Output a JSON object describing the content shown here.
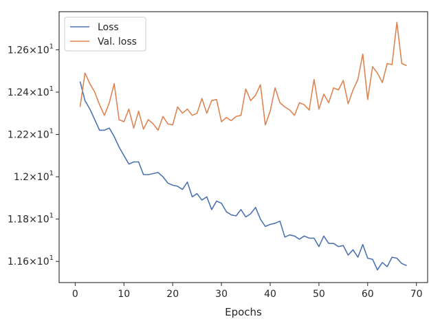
{
  "chart_data": {
    "type": "line",
    "title": "",
    "xlabel": "Epochs",
    "ylabel": "",
    "xlim": [
      -3.3,
      72.3
    ],
    "ylim": [
      11.5,
      12.78
    ],
    "grid": false,
    "legend_position": "top-left",
    "x_ticks": [
      0,
      10,
      20,
      30,
      40,
      50,
      60,
      70
    ],
    "x_tick_labels": [
      "0",
      "10",
      "20",
      "30",
      "40",
      "50",
      "60",
      "70"
    ],
    "y_ticks": [
      11.6,
      11.8,
      12.0,
      12.2,
      12.4,
      12.6
    ],
    "y_tick_labels": [
      {
        "base": "1.16",
        "exp": "1"
      },
      {
        "base": "1.18",
        "exp": "1"
      },
      {
        "base": "1.2",
        "exp": "1"
      },
      {
        "base": "1.22",
        "exp": "1"
      },
      {
        "base": "1.24",
        "exp": "1"
      },
      {
        "base": "1.26",
        "exp": "1"
      }
    ],
    "x": [
      1,
      2,
      3,
      4,
      5,
      6,
      7,
      8,
      9,
      10,
      11,
      12,
      13,
      14,
      15,
      16,
      17,
      18,
      19,
      20,
      21,
      22,
      23,
      24,
      25,
      26,
      27,
      28,
      29,
      30,
      31,
      32,
      33,
      34,
      35,
      36,
      37,
      38,
      39,
      40,
      41,
      42,
      43,
      44,
      45,
      46,
      47,
      48,
      49,
      50,
      51,
      52,
      53,
      54,
      55,
      56,
      57,
      58,
      59,
      60,
      61,
      62,
      63,
      64,
      65,
      66,
      67,
      68
    ],
    "series": [
      {
        "name": "Loss",
        "color": "#4c72b0",
        "values": [
          12.45,
          12.36,
          12.32,
          12.27,
          12.22,
          12.22,
          12.23,
          12.19,
          12.14,
          12.1,
          12.06,
          12.07,
          12.07,
          12.01,
          12.01,
          12.015,
          12.02,
          12.0,
          11.97,
          11.96,
          11.955,
          11.94,
          11.975,
          11.905,
          11.92,
          11.89,
          11.905,
          11.845,
          11.885,
          11.875,
          11.835,
          11.82,
          11.815,
          11.845,
          11.81,
          11.825,
          11.855,
          11.8,
          11.765,
          11.775,
          11.78,
          11.79,
          11.715,
          11.725,
          11.72,
          11.705,
          11.72,
          11.71,
          11.71,
          11.67,
          11.72,
          11.685,
          11.685,
          11.67,
          11.675,
          11.63,
          11.655,
          11.62,
          11.68,
          11.615,
          11.61,
          11.56,
          11.595,
          11.575,
          11.62,
          11.615,
          11.59,
          11.58
        ]
      },
      {
        "name": "Val. loss",
        "color": "#dd8452",
        "values": [
          12.33,
          12.49,
          12.44,
          12.4,
          12.34,
          12.29,
          12.35,
          12.44,
          12.27,
          12.26,
          12.32,
          12.23,
          12.31,
          12.225,
          12.27,
          12.25,
          12.22,
          12.285,
          12.25,
          12.245,
          12.33,
          12.3,
          12.32,
          12.29,
          12.3,
          12.37,
          12.3,
          12.36,
          12.365,
          12.26,
          12.28,
          12.265,
          12.285,
          12.29,
          12.415,
          12.36,
          12.385,
          12.435,
          12.245,
          12.31,
          12.42,
          12.35,
          12.33,
          12.315,
          12.29,
          12.35,
          12.34,
          12.315,
          12.46,
          12.32,
          12.39,
          12.35,
          12.42,
          12.41,
          12.455,
          12.345,
          12.41,
          12.46,
          12.58,
          12.365,
          12.52,
          12.49,
          12.445,
          12.535,
          12.53,
          12.73,
          12.535,
          12.525
        ]
      }
    ]
  }
}
